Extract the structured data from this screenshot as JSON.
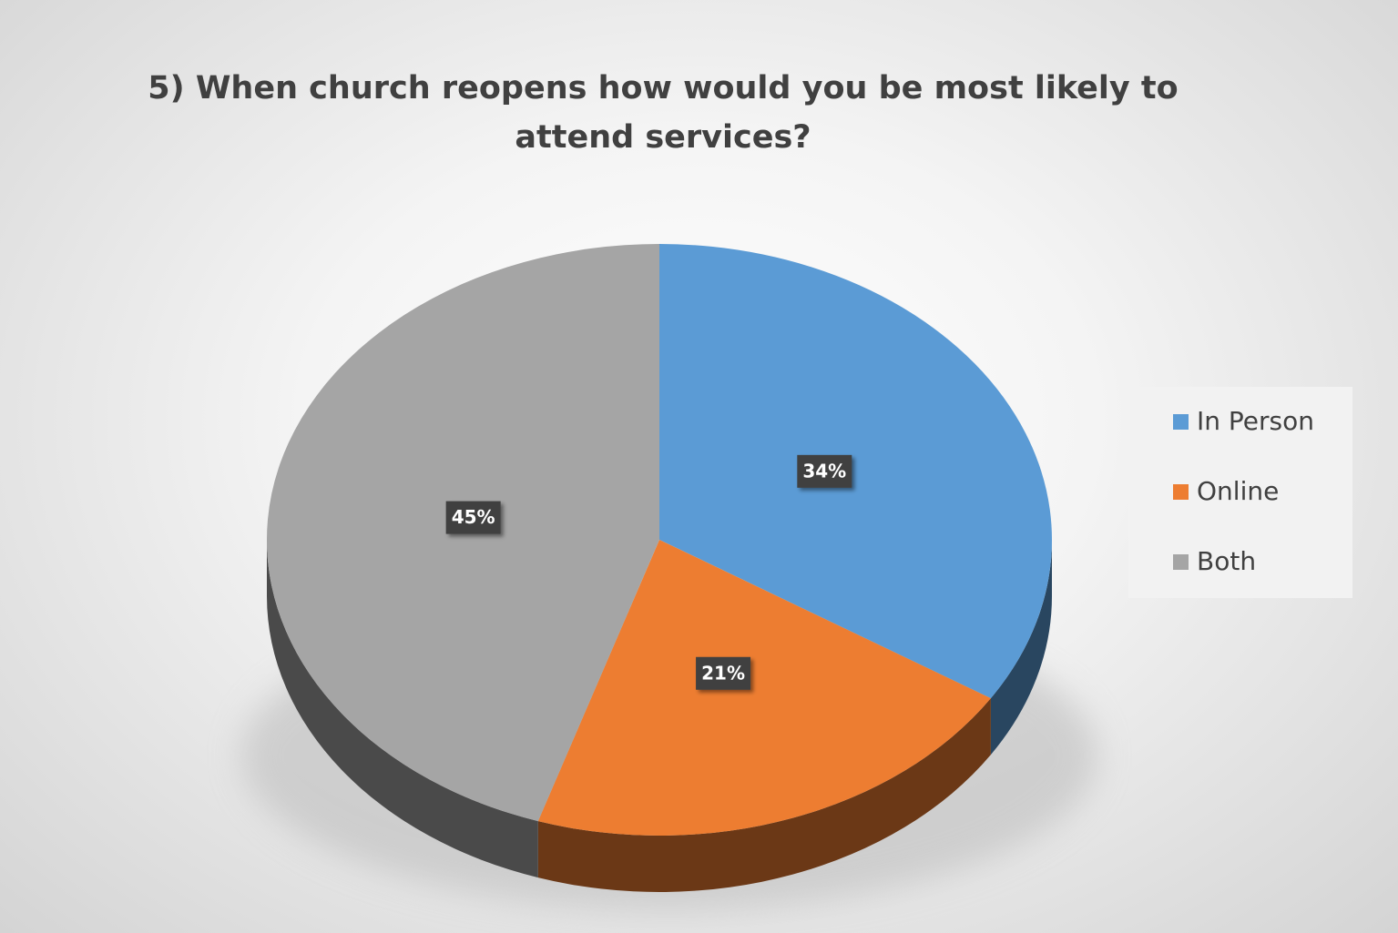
{
  "chart_data": {
    "type": "pie",
    "title": "5) When church reopens how would you be most likely to attend services?",
    "categories": [
      "In Person",
      "Online",
      "Both"
    ],
    "values": [
      34,
      21,
      45
    ],
    "value_labels": [
      "34%",
      "21%",
      "45%"
    ],
    "colors": [
      "#5b9bd5",
      "#ed7d31",
      "#a5a5a5"
    ],
    "legend": "right"
  }
}
